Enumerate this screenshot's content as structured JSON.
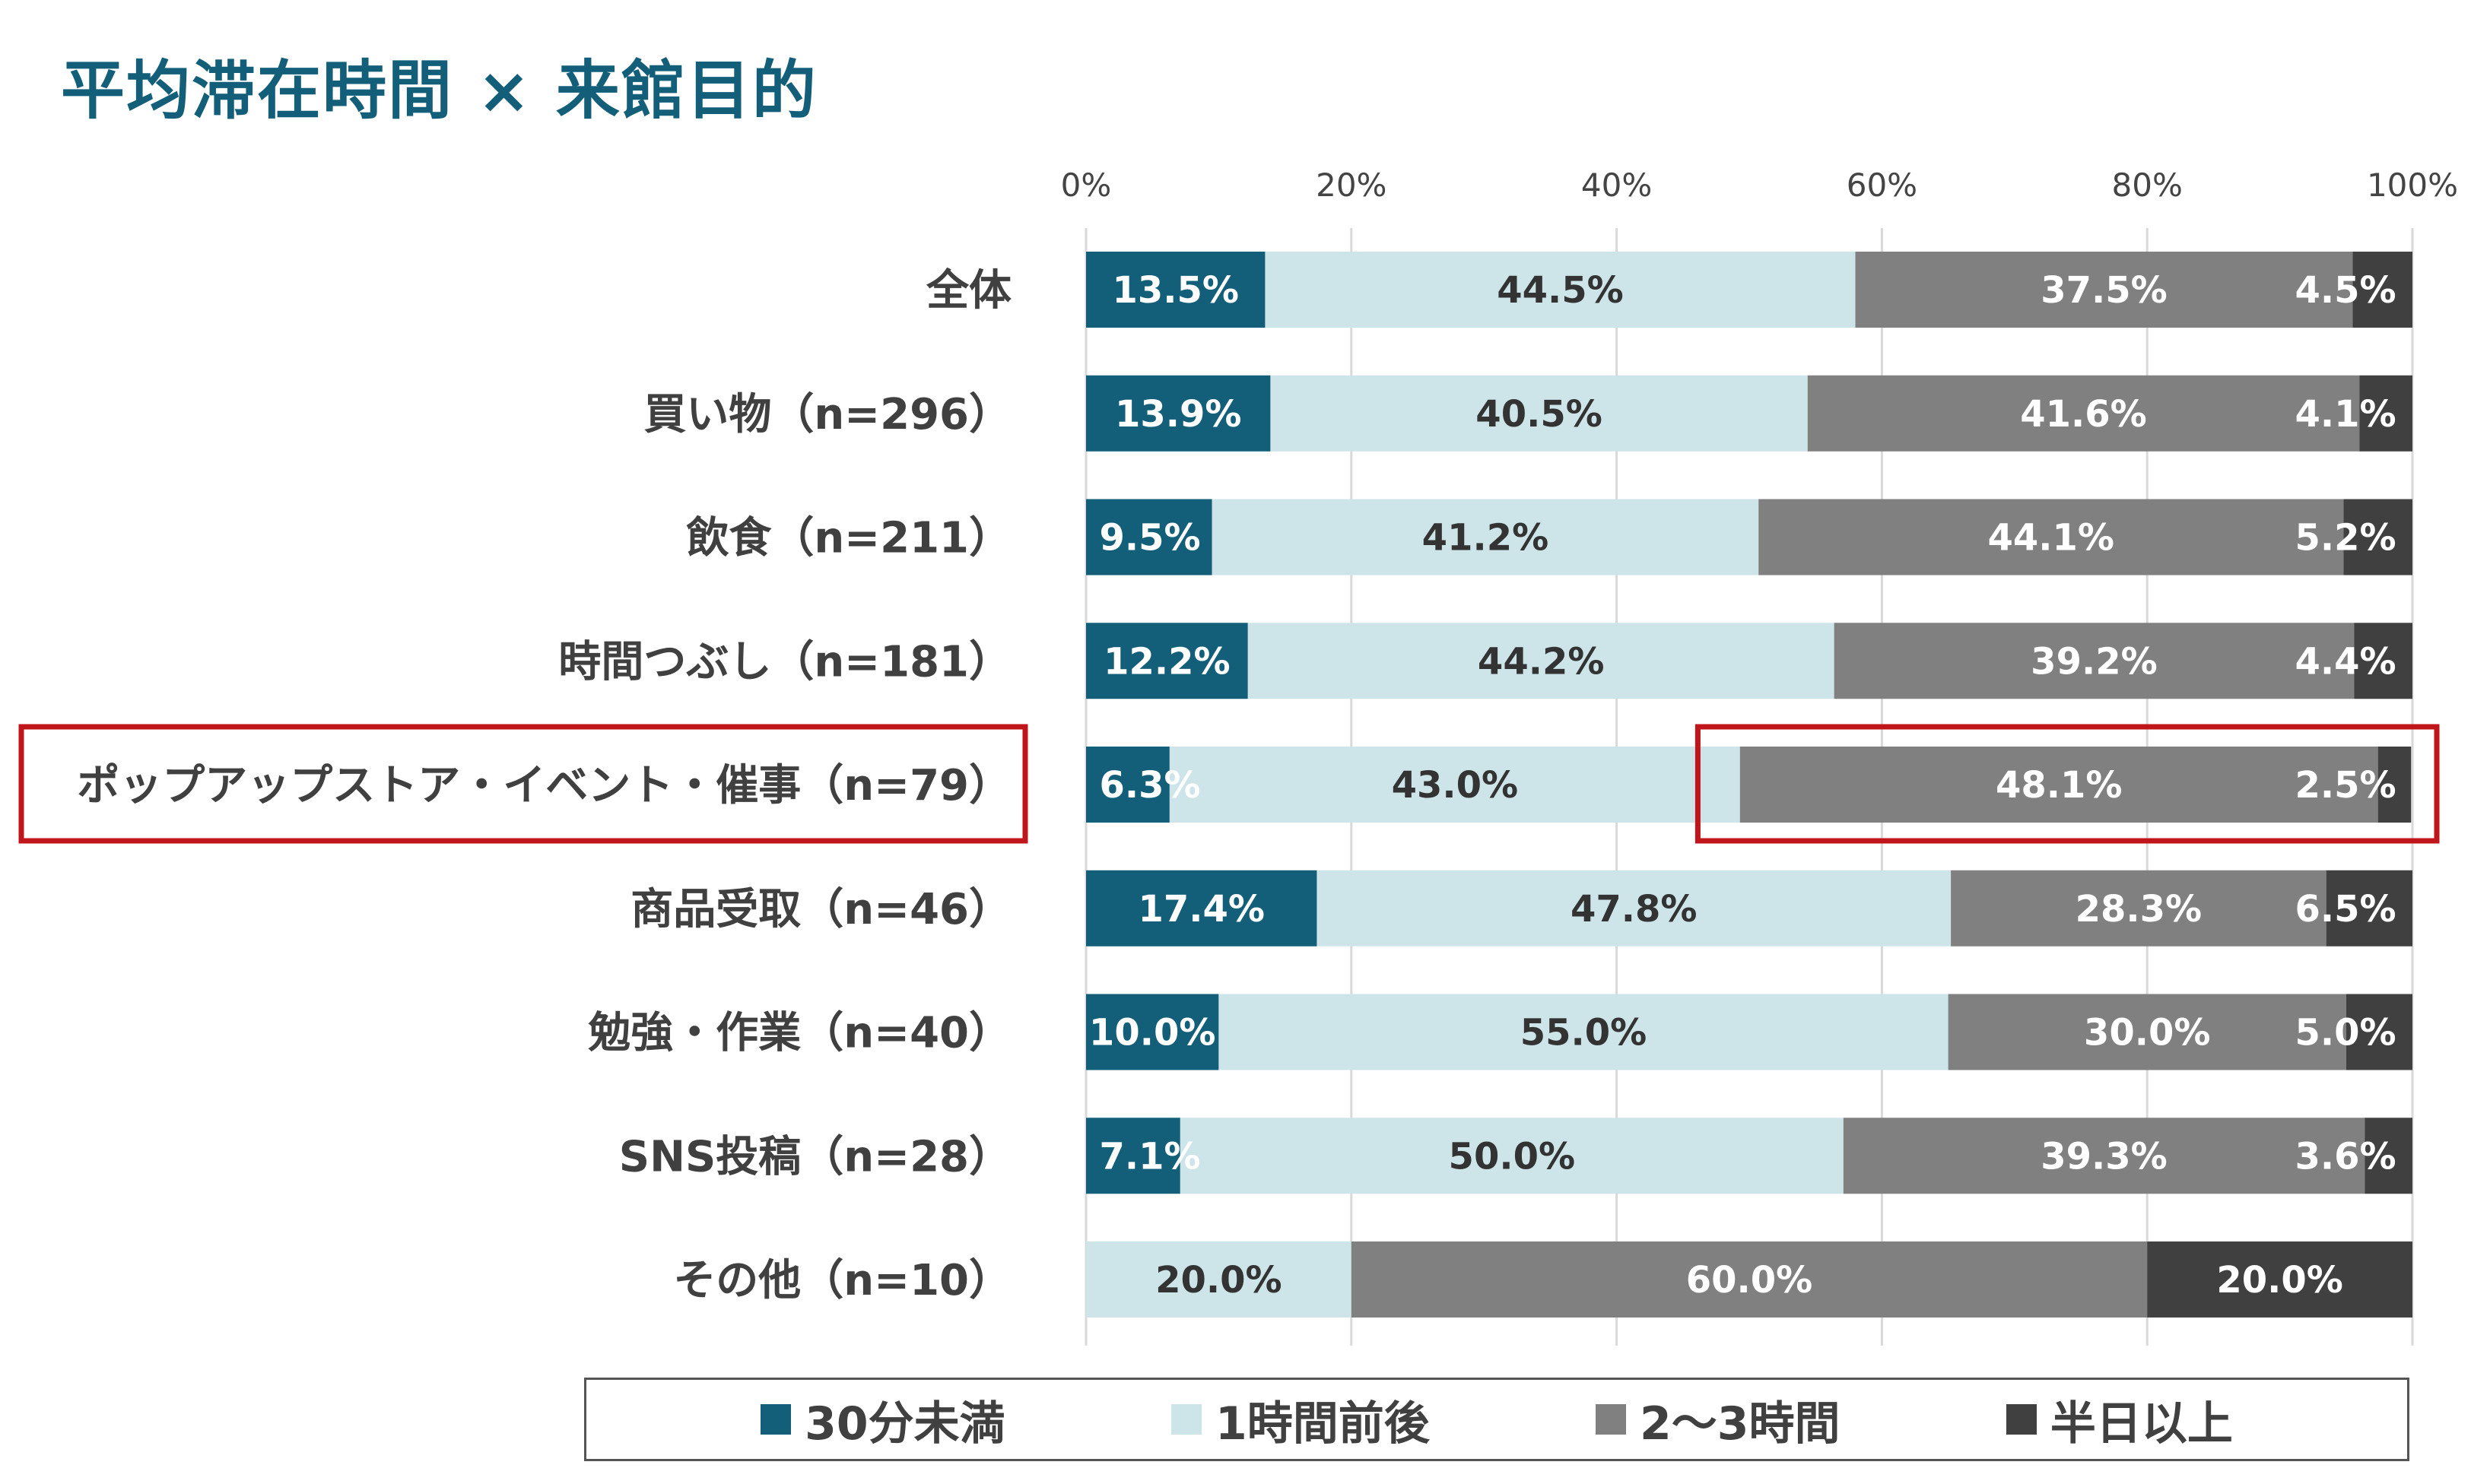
{
  "chart_data": {
    "type": "bar",
    "orientation": "horizontal",
    "stacked": "100%",
    "title": "平均滞在時間 × 来館目的",
    "xlim": [
      0,
      100
    ],
    "xticks": [
      "0%",
      "20%",
      "40%",
      "60%",
      "80%",
      "100%"
    ],
    "grid": true,
    "legend_position": "bottom",
    "categories": [
      "全体",
      "買い物（n=296）",
      "飲食（n=211）",
      "時間つぶし（n=181）",
      "ポップアップストア・イベント・催事（n=79）",
      "商品受取（n=46）",
      "勉強・作業（n=40）",
      "SNS投稿（n=28）",
      "その他（n=10）"
    ],
    "series": [
      {
        "name": "30分未満",
        "color": "#135f7a",
        "text_color": "#ffffff",
        "values": [
          13.5,
          13.9,
          9.5,
          12.2,
          6.3,
          17.4,
          10.0,
          7.1,
          0
        ],
        "labels": [
          "13.5%",
          "13.9%",
          "9.5%",
          "12.2%",
          "6.3%",
          "17.4%",
          "10.0%",
          "7.1%",
          ""
        ]
      },
      {
        "name": "1時間前後",
        "color": "#cde5e8",
        "text_color": "#333333",
        "values": [
          44.5,
          40.5,
          41.2,
          44.2,
          43.0,
          47.8,
          55.0,
          50.0,
          20.0
        ],
        "labels": [
          "44.5%",
          "40.5%",
          "41.2%",
          "44.2%",
          "43.0%",
          "47.8%",
          "55.0%",
          "50.0%",
          "20.0%"
        ]
      },
      {
        "name": "2〜3時間",
        "color": "#808080",
        "text_color": "#ffffff",
        "values": [
          37.5,
          41.6,
          44.1,
          39.2,
          48.1,
          28.3,
          30.0,
          39.3,
          60.0
        ],
        "labels": [
          "37.5%",
          "41.6%",
          "44.1%",
          "39.2%",
          "48.1%",
          "28.3%",
          "30.0%",
          "39.3%",
          "60.0%"
        ]
      },
      {
        "name": "半日以上",
        "color": "#404040",
        "text_color": "#ffffff",
        "values": [
          4.5,
          4.1,
          5.2,
          4.4,
          2.5,
          6.5,
          5.0,
          3.6,
          20.0
        ],
        "labels": [
          "4.5%",
          "4.1%",
          "5.2%",
          "4.4%",
          "2.5%",
          "6.5%",
          "5.0%",
          "3.6%",
          "20.0%"
        ]
      }
    ],
    "highlights": {
      "color": "#c0161b",
      "category_index": 4,
      "value_range": [
        47.5,
        100
      ]
    }
  }
}
